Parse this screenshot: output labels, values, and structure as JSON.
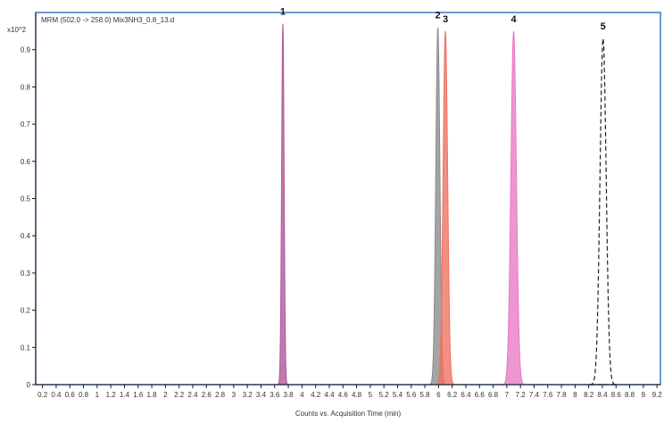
{
  "chart_data": {
    "type": "line",
    "title": "MRM (502.0 -> 258.0) Mix3NH3_0.8_13.d",
    "xlabel": "Counts vs. Acquisition Time (min)",
    "ylabel": "",
    "y_multiplier": "x10^2",
    "xlim": [
      0.1,
      9.25
    ],
    "ylim": [
      0,
      1.0
    ],
    "y_ticks": [
      0,
      0.1,
      0.2,
      0.3,
      0.4,
      0.5,
      0.6,
      0.7,
      0.8,
      0.9
    ],
    "y_tick_labels": [
      "0",
      "0.1",
      "0.2",
      "0.3",
      "0.4",
      "0.5",
      "0.6",
      "0.7",
      "0.8",
      "0.9"
    ],
    "x_ticks": [
      0.2,
      0.4,
      0.6,
      0.8,
      1,
      1.2,
      1.4,
      1.6,
      1.8,
      2,
      2.2,
      2.4,
      2.6,
      2.8,
      3,
      3.2,
      3.4,
      3.6,
      3.8,
      4,
      4.2,
      4.4,
      4.6,
      4.8,
      5,
      5.2,
      5.4,
      5.6,
      5.8,
      6,
      6.2,
      6.4,
      6.6,
      6.8,
      7,
      7.2,
      7.4,
      7.6,
      7.8,
      8,
      8.2,
      8.4,
      8.6,
      8.8,
      9,
      9.2
    ],
    "x_tick_labels": [
      "0.2",
      "0.4",
      "0.6",
      "0.8",
      "1",
      "1.2",
      "1.4",
      "1.6",
      "1.8",
      "2",
      "2.2",
      "2.4",
      "2.6",
      "2.8",
      "3",
      "3.2",
      "3.4",
      "3.6",
      "3.8",
      "4",
      "4.2",
      "4.4",
      "4.6",
      "4.8",
      "5",
      "5.2",
      "5.4",
      "5.6",
      "5.8",
      "6",
      "6.2",
      "6.4",
      "6.6",
      "6.8",
      "7",
      "7.2",
      "7.4",
      "7.6",
      "7.8",
      "8",
      "8.2",
      "8.4",
      "8.6",
      "8.8",
      "9",
      "9.2"
    ],
    "grid": false,
    "legend": "none",
    "series": [
      {
        "label": "1",
        "rt": 3.72,
        "height": 0.97,
        "sigma": 0.018,
        "color": "#b0559a",
        "fill": true,
        "style": "solid"
      },
      {
        "label": "2",
        "rt": 5.99,
        "height": 0.96,
        "sigma": 0.03,
        "color": "#8a8a8a",
        "fill": true,
        "style": "solid"
      },
      {
        "label": "3",
        "rt": 6.1,
        "height": 0.95,
        "sigma": 0.033,
        "color": "#ef7060",
        "fill": true,
        "style": "solid"
      },
      {
        "label": "4",
        "rt": 7.1,
        "height": 0.95,
        "sigma": 0.04,
        "color": "#e878c4",
        "fill": true,
        "style": "solid"
      },
      {
        "label": "5",
        "rt": 8.41,
        "height": 0.93,
        "sigma": 0.045,
        "color": "#222222",
        "fill": false,
        "style": "dashed"
      }
    ]
  }
}
